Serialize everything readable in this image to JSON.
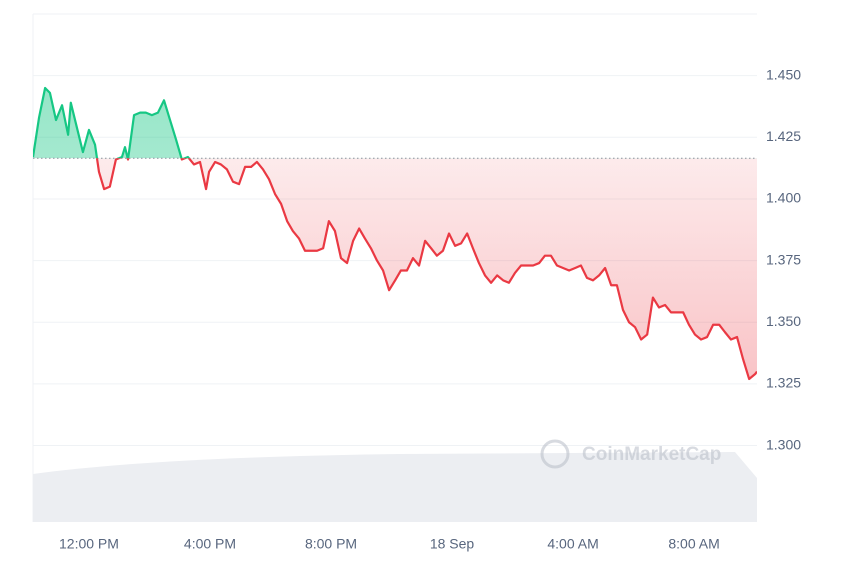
{
  "chart_data": {
    "type": "line",
    "watermark": "CoinMarketCap",
    "x": [
      10.15,
      10.35,
      10.55,
      10.71,
      10.91,
      11.11,
      11.31,
      11.4,
      11.6,
      11.8,
      12.0,
      12.2,
      12.33,
      12.5,
      12.69,
      12.89,
      13.09,
      13.19,
      13.29,
      13.49,
      13.69,
      13.88,
      14.08,
      14.28,
      14.48,
      14.68,
      14.88,
      15.07,
      15.27,
      15.47,
      15.67,
      15.87,
      15.97,
      16.17,
      16.36,
      16.56,
      16.76,
      16.96,
      17.16,
      17.36,
      17.55,
      17.75,
      17.95,
      18.15,
      18.35,
      18.55,
      18.74,
      18.94,
      19.14,
      19.34,
      19.54,
      19.74,
      19.93,
      20.13,
      20.33,
      20.53,
      20.73,
      20.93,
      21.12,
      21.32,
      21.52,
      21.72,
      21.92,
      22.12,
      22.31,
      22.51,
      22.71,
      22.91,
      23.11,
      23.31,
      23.5,
      23.7,
      23.9,
      24.1,
      24.3,
      24.5,
      24.69,
      24.89,
      25.09,
      25.29,
      25.49,
      25.69,
      25.88,
      26.08,
      26.28,
      26.48,
      26.68,
      26.88,
      27.07,
      27.27,
      27.47,
      27.67,
      27.87,
      28.07,
      28.26,
      28.46,
      28.66,
      28.86,
      29.06,
      29.26,
      29.45,
      29.65,
      29.85,
      30.05,
      30.25,
      30.45,
      30.64,
      30.84,
      31.04,
      31.24,
      31.44,
      31.64,
      31.83,
      32.03,
      32.23,
      32.43,
      32.63,
      32.83,
      33.02,
      33.22,
      33.42,
      33.62,
      33.82,
      34.02,
      34.08
    ],
    "series": [
      {
        "color_above": "#16c784",
        "color_below": "#ea3943",
        "values": [
          1.417,
          1.433,
          1.445,
          1.443,
          1.432,
          1.438,
          1.426,
          1.439,
          1.429,
          1.419,
          1.428,
          1.422,
          1.411,
          1.404,
          1.405,
          1.416,
          1.417,
          1.421,
          1.416,
          1.434,
          1.435,
          1.435,
          1.434,
          1.435,
          1.44,
          1.432,
          1.424,
          1.416,
          1.417,
          1.414,
          1.415,
          1.404,
          1.411,
          1.415,
          1.414,
          1.412,
          1.407,
          1.406,
          1.413,
          1.413,
          1.415,
          1.412,
          1.408,
          1.402,
          1.398,
          1.391,
          1.387,
          1.384,
          1.379,
          1.379,
          1.379,
          1.38,
          1.391,
          1.387,
          1.376,
          1.374,
          1.383,
          1.388,
          1.384,
          1.38,
          1.375,
          1.371,
          1.363,
          1.367,
          1.371,
          1.371,
          1.376,
          1.373,
          1.383,
          1.38,
          1.377,
          1.379,
          1.386,
          1.381,
          1.382,
          1.386,
          1.38,
          1.374,
          1.369,
          1.366,
          1.369,
          1.367,
          1.366,
          1.37,
          1.373,
          1.373,
          1.373,
          1.374,
          1.377,
          1.377,
          1.373,
          1.372,
          1.371,
          1.372,
          1.373,
          1.368,
          1.367,
          1.369,
          1.372,
          1.365,
          1.365,
          1.355,
          1.35,
          1.348,
          1.343,
          1.345,
          1.36,
          1.356,
          1.357,
          1.354,
          1.354,
          1.354,
          1.349,
          1.345,
          1.343,
          1.344,
          1.349,
          1.349,
          1.346,
          1.343,
          1.344,
          1.335,
          1.327,
          1.329,
          1.33
        ]
      }
    ],
    "baseline": 1.4165,
    "xlim": [
      10.15,
      34.08
    ],
    "xticks": [
      {
        "value": 12,
        "label": "12:00 PM"
      },
      {
        "value": 16,
        "label": "4:00 PM"
      },
      {
        "value": 20,
        "label": "8:00 PM"
      },
      {
        "value": 24,
        "label": "18 Sep"
      },
      {
        "value": 28,
        "label": "4:00 AM"
      },
      {
        "value": 32,
        "label": "8:00 AM"
      }
    ],
    "ylim": [
      1.269,
      1.475
    ],
    "yticks": [
      {
        "value": 1.3,
        "label": "1.300"
      },
      {
        "value": 1.325,
        "label": "1.325"
      },
      {
        "value": 1.35,
        "label": "1.350"
      },
      {
        "value": 1.375,
        "label": "1.375"
      },
      {
        "value": 1.4,
        "label": "1.400"
      },
      {
        "value": 1.425,
        "label": "1.425"
      },
      {
        "value": 1.45,
        "label": "1.450"
      }
    ],
    "grid": true
  }
}
